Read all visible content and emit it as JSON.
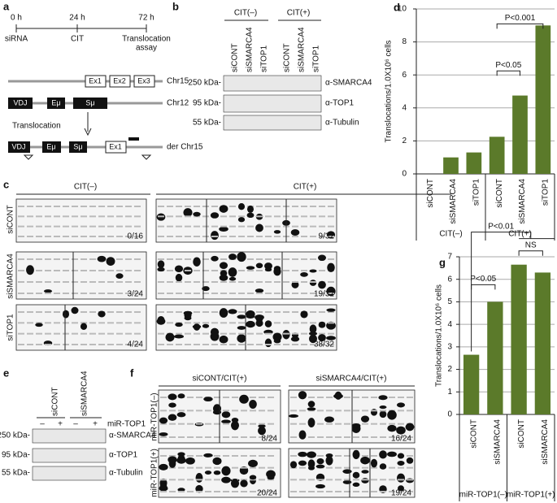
{
  "panels": {
    "a": {
      "label": "a",
      "times": [
        "0 h",
        "24 h",
        "72 h"
      ],
      "steps": [
        "siRNA",
        "CIT"
      ],
      "assay": [
        "Translocation",
        "assay"
      ],
      "chr15": {
        "exons": [
          "Ex1",
          "Ex2",
          "Ex3"
        ],
        "name": "Chr15"
      },
      "chr12": {
        "parts": [
          "VDJ",
          "Eμ",
          "Sμ"
        ],
        "name": "Chr12"
      },
      "event": "Translocation",
      "der": {
        "parts": [
          "VDJ",
          "Eμ",
          "Sμ",
          "Ex1"
        ],
        "name": "der Chr15"
      }
    },
    "b": {
      "label": "b",
      "groups": [
        "CIT(–)",
        "CIT(+)"
      ],
      "lanes": [
        "siCONT",
        "siSMARCA4",
        "siTOP1",
        "siCONT",
        "siSMARCA4",
        "siTOP1"
      ],
      "sizes": [
        "250 kDa-",
        "95 kDa-",
        "55 kDa-"
      ],
      "antibodies": [
        "α-SMARCA4",
        "α-TOP1",
        "α-Tubulin"
      ]
    },
    "c": {
      "label": "c",
      "groups": [
        "CIT(–)",
        "CIT(+)"
      ],
      "rows": [
        "siCONT",
        "siSMARCA4",
        "siTOP1"
      ],
      "counts": [
        [
          "0/16",
          "9/32"
        ],
        [
          "3/24",
          "19/32"
        ],
        [
          "4/24",
          "38/32"
        ]
      ]
    },
    "e": {
      "label": "e",
      "lanes": [
        "siCONT",
        "siSMARCA4"
      ],
      "signs": [
        "–",
        "+",
        "–",
        "+"
      ],
      "treatment": "miR-TOP1",
      "sizes": [
        "250 kDa-",
        "95 kDa-",
        "55 kDa-"
      ],
      "antibodies": [
        "α-SMARCA4",
        "α-TOP1",
        "α-Tubulin"
      ]
    },
    "f": {
      "label": "f",
      "groups": [
        "siCONT/CIT(+)",
        "siSMARCA4/CIT(+)"
      ],
      "rows": [
        "miR-TOP1(–)",
        "miR-TOP1(+)"
      ],
      "counts": [
        [
          "8/24",
          "16/24"
        ],
        [
          "20/24",
          "19/24"
        ]
      ]
    },
    "d": {
      "label": "d"
    },
    "g": {
      "label": "g"
    }
  },
  "chart_data": [
    {
      "type": "bar",
      "ylabel": "Translocations/1.0X10⁶ cells",
      "categories": [
        "siCONT",
        "siSMARCA4",
        "siTOP1",
        "siCONT",
        "siSMARCA4",
        "siTOP1"
      ],
      "groups": [
        "CIT(–)",
        "CIT(+)"
      ],
      "values": [
        0,
        1.0,
        1.3,
        2.25,
        4.75,
        9.0
      ],
      "color": "#5b7a2a",
      "ylim": [
        0,
        10
      ],
      "yticks": [
        0,
        2,
        4,
        6,
        8,
        10
      ],
      "grid": true,
      "annotations": [
        "P<0.001",
        "P<0.05"
      ]
    },
    {
      "type": "bar",
      "ylabel": "Translocations/1.0X10⁶ cells",
      "categories": [
        "siCONT",
        "siSMARCA4",
        "siCONT",
        "siSMARCA4"
      ],
      "groups": [
        "miR-TOP1(–)",
        "miR-TOP1(+)"
      ],
      "values": [
        2.65,
        5.0,
        6.65,
        6.3
      ],
      "color": "#5b7a2a",
      "ylim": [
        0,
        7
      ],
      "yticks": [
        0,
        1,
        2,
        3,
        4,
        5,
        6,
        7
      ],
      "grid": true,
      "annotations": [
        "P<0.05",
        "P<0.01",
        "NS"
      ]
    }
  ]
}
